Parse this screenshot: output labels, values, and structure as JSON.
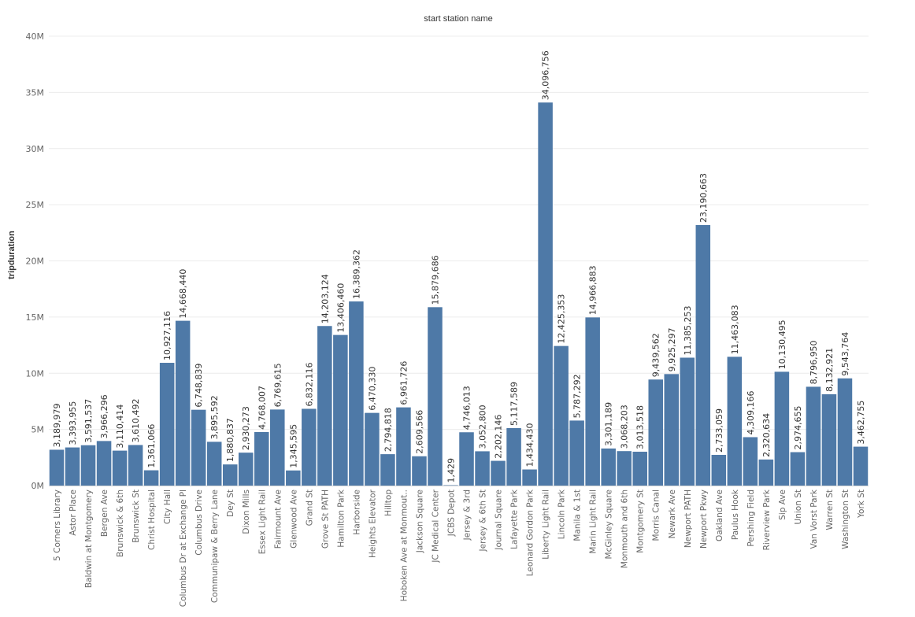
{
  "chart_data": {
    "type": "bar",
    "title": "start station name",
    "ylabel": "tripduration",
    "ylim": [
      0,
      40000000
    ],
    "yticks": [
      0,
      5000000,
      10000000,
      15000000,
      20000000,
      25000000,
      30000000,
      35000000,
      40000000
    ],
    "ytick_labels": [
      "0M",
      "5M",
      "10M",
      "15M",
      "20M",
      "25M",
      "30M",
      "35M",
      "40M"
    ],
    "grid": true,
    "bar_color": "#4e79a7",
    "categories": [
      "5 Corners Library",
      "Astor Place",
      "Baldwin at Montgomery",
      "Bergen Ave",
      "Brunswick & 6th",
      "Brunswick St",
      "Christ Hospital",
      "City Hall",
      "Columbus Dr at Exchange Pl",
      "Columbus Drive",
      "Communipaw & Berry Lane",
      "Dey St",
      "Dixon Mills",
      "Essex Light Rail",
      "Fairmount Ave",
      "Glenwood Ave",
      "Grand St",
      "Grove St PATH",
      "Hamilton Park",
      "Harborside",
      "Heights Elevator",
      "Hilltop",
      "Hoboken Ave at Monmout..",
      "Jackson Square",
      "JC Medical Center",
      "JCBS Depot",
      "Jersey & 3rd",
      "Jersey & 6th St",
      "Journal Square",
      "Lafayette Park",
      "Leonard Gordon Park",
      "Liberty Light Rail",
      "Lincoln Park",
      "Manila & 1st",
      "Marin Light Rail",
      "McGinley Square",
      "Monmouth and 6th",
      "Montgomery St",
      "Morris Canal",
      "Newark Ave",
      "Newport PATH",
      "Newport Pkwy",
      "Oakland Ave",
      "Paulus Hook",
      "Pershing Field",
      "Riverview Park",
      "Sip Ave",
      "Union St",
      "Van Vorst Park",
      "Warren St",
      "Washington St",
      "York St"
    ],
    "values": [
      3189979,
      3393955,
      3591537,
      3966296,
      3110414,
      3610492,
      1361066,
      10927116,
      14668440,
      6748839,
      3895592,
      1880837,
      2930273,
      4768007,
      6769615,
      1345595,
      6832116,
      14203124,
      13406460,
      16389362,
      6470330,
      2794818,
      6961726,
      2609566,
      15879686,
      1429,
      4746013,
      3052800,
      2202146,
      5117589,
      1434430,
      34096756,
      12425353,
      5787292,
      14966883,
      3301189,
      3068203,
      3013518,
      9439562,
      9925297,
      11385253,
      23190663,
      2733059,
      11463083,
      4309166,
      2320634,
      10130495,
      2974655,
      8796950,
      8132921,
      9543764,
      3462755
    ],
    "value_labels": [
      "3,189,979",
      "3,393,955",
      "3,591,537",
      "3,966,296",
      "3,110,414",
      "3,610,492",
      "1,361,066",
      "10,927,116",
      "14,668,440",
      "6,748,839",
      "3,895,592",
      "1,880,837",
      "2,930,273",
      "4,768,007",
      "6,769,615",
      "1,345,595",
      "6,832,116",
      "14,203,124",
      "13,406,460",
      "16,389,362",
      "6,470,330",
      "2,794,818",
      "6,961,726",
      "2,609,566",
      "15,879,686",
      "1,429",
      "4,746,013",
      "3,052,800",
      "2,202,146",
      "5,117,589",
      "1,434,430",
      "34,096,756",
      "12,425,353",
      "5,787,292",
      "14,966,883",
      "3,301,189",
      "3,068,203",
      "3,013,518",
      "9,439,562",
      "9,925,297",
      "11,385,253",
      "23,190,663",
      "2,733,059",
      "11,463,083",
      "4,309,166",
      "2,320,634",
      "10,130,495",
      "2,974,655",
      "8,796,950",
      "8,132,921",
      "9,543,764",
      "3,462,755"
    ]
  }
}
